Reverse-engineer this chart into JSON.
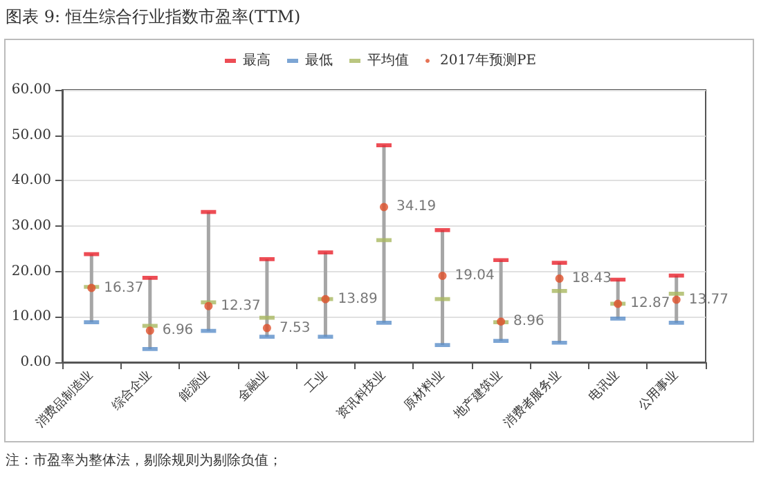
{
  "chart_data": {
    "type": "scatter",
    "title": "图表 9:  恒生综合行业指数市盈率(TTM)",
    "categories": [
      "消费品制造业",
      "综合企业",
      "能源业",
      "金融业",
      "工业",
      "资讯科技业",
      "原材料业",
      "地产建筑业",
      "消费者服务业",
      "电讯业",
      "公用事业"
    ],
    "series": [
      {
        "name": "最高",
        "color": "#e8202a",
        "values": [
          23.8,
          18.6,
          33.1,
          22.7,
          24.2,
          47.8,
          29.1,
          22.5,
          21.9,
          18.2,
          19.1
        ]
      },
      {
        "name": "最低",
        "color": "#5b8fc9",
        "values": [
          8.8,
          2.9,
          6.9,
          5.6,
          5.6,
          8.7,
          3.8,
          4.7,
          4.3,
          9.6,
          8.7
        ]
      },
      {
        "name": "平均值",
        "color": "#a9b860",
        "values": [
          16.6,
          8.0,
          13.2,
          9.8,
          13.9,
          26.9,
          13.9,
          8.8,
          15.7,
          12.9,
          15.1
        ]
      },
      {
        "name": "2017年预测PE",
        "color": "#e0502a",
        "marker": "circle",
        "values": [
          16.37,
          6.96,
          12.37,
          7.53,
          13.89,
          34.19,
          19.04,
          8.96,
          18.43,
          12.87,
          13.77
        ],
        "value_labels": [
          "16.37",
          "6.96",
          "12.37",
          "7.53",
          "13.89",
          "34.19",
          "19.04",
          "8.96",
          "18.43",
          "12.87",
          "13.77"
        ]
      }
    ],
    "ylim": [
      0,
      60
    ],
    "yticks": [
      {
        "value": 0,
        "label": "0.00"
      },
      {
        "value": 10,
        "label": "10.00"
      },
      {
        "value": 20,
        "label": "20.00"
      },
      {
        "value": 30,
        "label": "30.00"
      },
      {
        "value": 40,
        "label": "40.00"
      },
      {
        "value": 50,
        "label": "50.00"
      },
      {
        "value": 60,
        "label": "60.00"
      }
    ],
    "grid": "y",
    "legend": "top",
    "annotations": [
      "注：市盈率为整体法，剔除规则为剔除负值；"
    ]
  }
}
